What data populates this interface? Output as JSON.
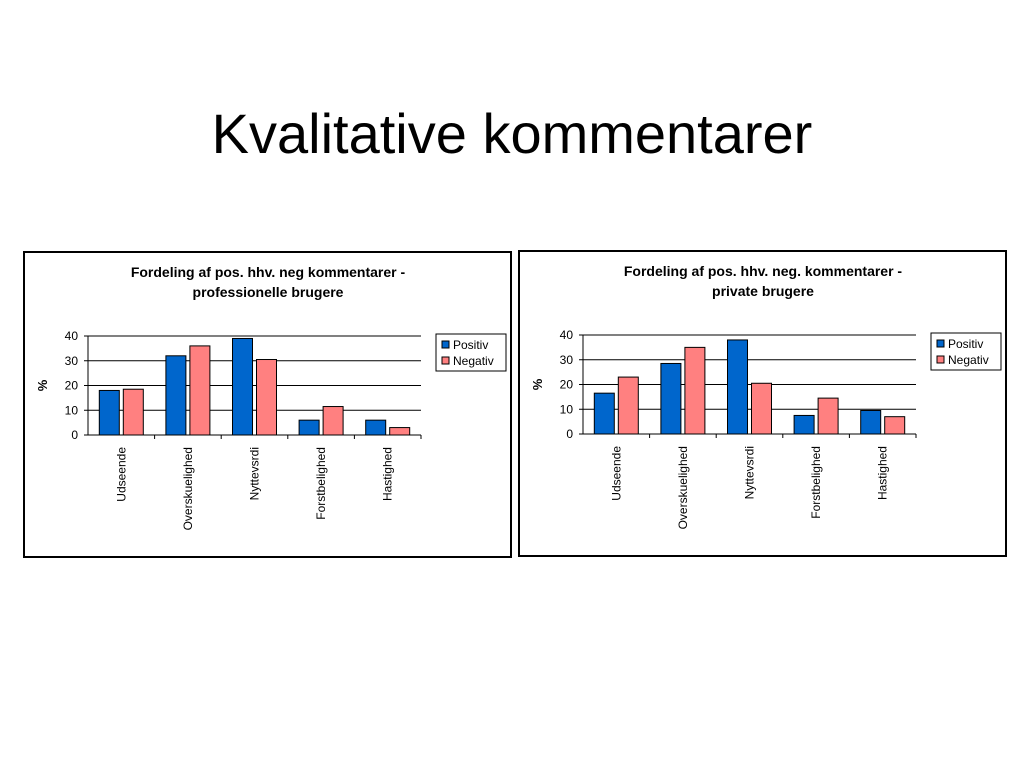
{
  "slide": {
    "title": "Kvalitative kommentarer"
  },
  "chart_data": [
    {
      "type": "bar",
      "title_lines": [
        "Fordeling af pos. hhv. neg kommentarer -",
        "professionelle brugere"
      ],
      "ylabel": "%",
      "xlabel": "",
      "ylim": [
        0,
        40
      ],
      "yticks": [
        0,
        10,
        20,
        30,
        40
      ],
      "grid": true,
      "legend_position": "right",
      "categories": [
        "Udseende",
        "Overskuelighed",
        "Nyttevsrdi",
        "Forstbelighed",
        "Hastighed"
      ],
      "series": [
        {
          "name": "Positiv",
          "color": "#0066cc",
          "values": [
            18,
            32,
            39,
            6,
            6
          ]
        },
        {
          "name": "Negativ",
          "color": "#ff8080",
          "values": [
            18.5,
            36,
            30.5,
            11.5,
            3
          ]
        }
      ]
    },
    {
      "type": "bar",
      "title_lines": [
        "Fordeling af pos. hhv. neg. kommentarer -",
        "private brugere"
      ],
      "ylabel": "%",
      "xlabel": "",
      "ylim": [
        0,
        40
      ],
      "yticks": [
        0,
        10,
        20,
        30,
        40
      ],
      "grid": true,
      "legend_position": "right",
      "categories": [
        "Udseende",
        "Overskuelighed",
        "Nyttevsrdi",
        "Forstbelighed",
        "Hastighed"
      ],
      "series": [
        {
          "name": "Positiv",
          "color": "#0066cc",
          "values": [
            16.5,
            28.5,
            38,
            7.5,
            9.5
          ]
        },
        {
          "name": "Negativ",
          "color": "#ff8080",
          "values": [
            23,
            35,
            20.5,
            14.5,
            7
          ]
        }
      ]
    }
  ]
}
